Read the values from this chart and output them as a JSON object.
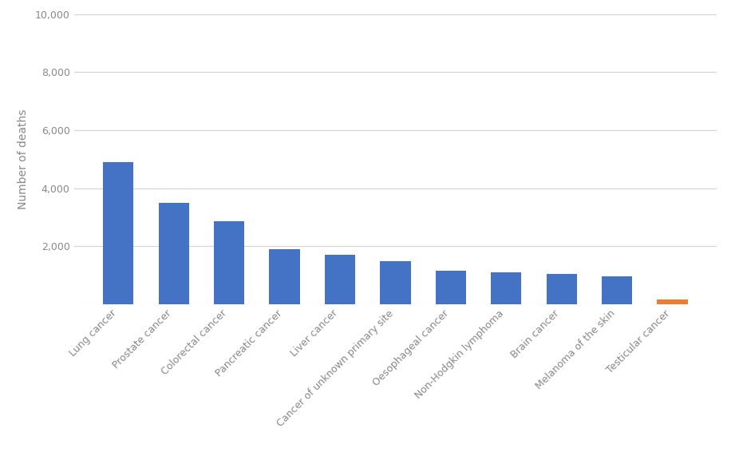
{
  "categories": [
    "Lung cancer",
    "Prostate cancer",
    "Colorectal cancer",
    "Pancreatic cancer",
    "Liver cancer",
    "Cancer of unknown primary site",
    "Oesophageal cancer",
    "Non-Hodgkin lymphoma",
    "Brain cancer",
    "Melanoma of the skin",
    "Testicular cancer"
  ],
  "values": [
    4900,
    3500,
    2850,
    1900,
    1700,
    1480,
    1150,
    1100,
    1050,
    950,
    175
  ],
  "bar_colors": [
    "#4472C4",
    "#4472C4",
    "#4472C4",
    "#4472C4",
    "#4472C4",
    "#4472C4",
    "#4472C4",
    "#4472C4",
    "#4472C4",
    "#4472C4",
    "#ED7D31"
  ],
  "ylabel": "Number of deaths",
  "ylim": [
    0,
    10000
  ],
  "yticks": [
    0,
    2000,
    4000,
    6000,
    8000,
    10000
  ],
  "ytick_labels": [
    "",
    "2,000",
    "4,000",
    "6,000",
    "8,000",
    "10,000"
  ],
  "background_color": "#ffffff",
  "grid_color": "#d3d3d3",
  "bar_width": 0.55,
  "label_fontsize": 9,
  "ylabel_fontsize": 10,
  "tick_color": "#888888",
  "label_color": "#888888"
}
